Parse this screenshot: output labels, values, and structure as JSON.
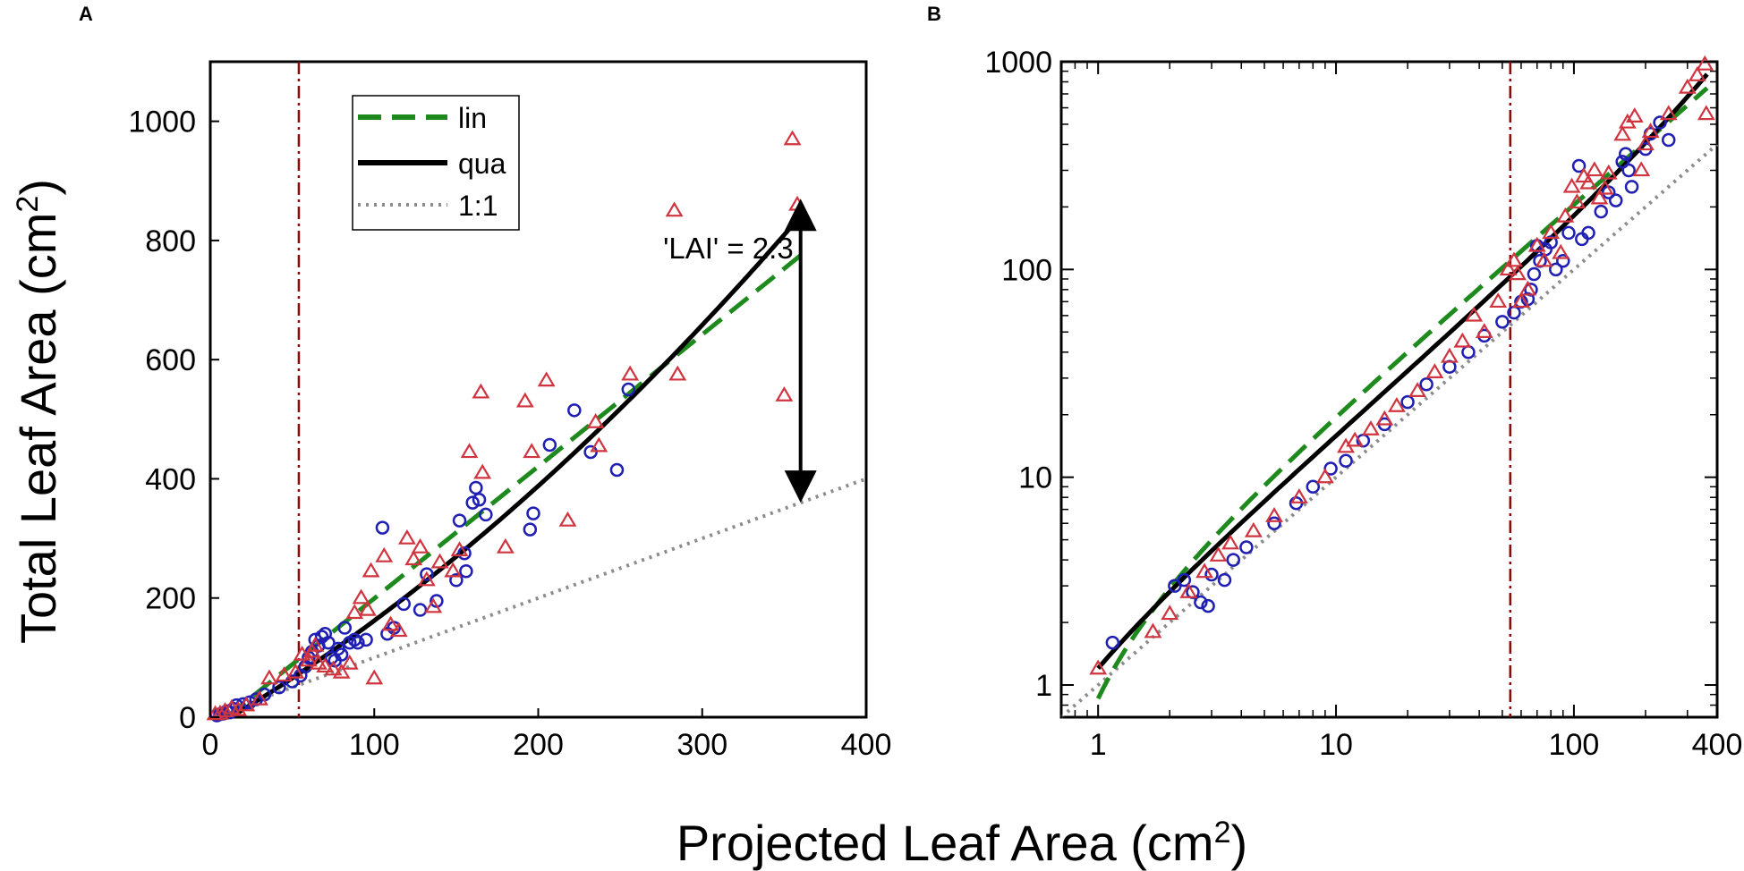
{
  "figure": {
    "shared_xlabel": "Projected Leaf Area (cm2)",
    "shared_xlabel_main": "Projected Leaf Area (cm",
    "shared_xlabel_sup": "2",
    "shared_xlabel_end": ")",
    "shared_ylabel_main": "Total Leaf Area (cm",
    "shared_ylabel_sup": "2",
    "shared_ylabel_end": ")"
  },
  "colors": {
    "blue": "#1f1fb4",
    "red": "#d0343f",
    "green": "#1e8a1e",
    "black": "#000000",
    "gray": "#8c8c8c",
    "darkred": "#8b0a0a"
  },
  "chart_data": [
    {
      "panel": "A",
      "type": "scatter",
      "xscale": "linear",
      "yscale": "linear",
      "xlim": [
        0,
        400
      ],
      "ylim": [
        0,
        1100
      ],
      "xticks": [
        0,
        100,
        200,
        300,
        400
      ],
      "yticks": [
        0,
        200,
        400,
        600,
        800,
        1000
      ],
      "vline_x": 54,
      "legend": {
        "position": "top-left",
        "entries": [
          {
            "key": "lin",
            "label": "lin",
            "style": "green-dashed"
          },
          {
            "key": "qua",
            "label": "qua",
            "style": "black-solid"
          },
          {
            "key": "one",
            "label": "1:1",
            "style": "gray-dotted"
          }
        ]
      },
      "annotation": {
        "text": "'LAI' = 2.3",
        "arrow_x": 360,
        "arrow_y_top": 870,
        "arrow_y_bottom": 360
      },
      "series": [
        {
          "name": "circles",
          "marker": "circle",
          "color": "blue",
          "points": [
            [
              4,
              3
            ],
            [
              6,
              5
            ],
            [
              8,
              6
            ],
            [
              10,
              10
            ],
            [
              12,
              8
            ],
            [
              14,
              14
            ],
            [
              16,
              20
            ],
            [
              20,
              22
            ],
            [
              24,
              25
            ],
            [
              28,
              30
            ],
            [
              33,
              38
            ],
            [
              42,
              50
            ],
            [
              50,
              60
            ],
            [
              55,
              70
            ],
            [
              58,
              85
            ],
            [
              60,
              100
            ],
            [
              62,
              110
            ],
            [
              64,
              130
            ],
            [
              66,
              120
            ],
            [
              68,
              135
            ],
            [
              70,
              140
            ],
            [
              72,
              125
            ],
            [
              74,
              100
            ],
            [
              76,
              95
            ],
            [
              78,
              115
            ],
            [
              80,
              105
            ],
            [
              82,
              150
            ],
            [
              85,
              125
            ],
            [
              88,
              130
            ],
            [
              90,
              125
            ],
            [
              95,
              130
            ],
            [
              105,
              318
            ],
            [
              108,
              140
            ],
            [
              112,
              150
            ],
            [
              118,
              190
            ],
            [
              128,
              180
            ],
            [
              132,
              240
            ],
            [
              138,
              195
            ],
            [
              150,
              230
            ],
            [
              152,
              330
            ],
            [
              155,
              275
            ],
            [
              156,
              245
            ],
            [
              160,
              360
            ],
            [
              162,
              385
            ],
            [
              164,
              365
            ],
            [
              168,
              340
            ],
            [
              195,
              315
            ],
            [
              197,
              342
            ],
            [
              207,
              457
            ],
            [
              222,
              515
            ],
            [
              232,
              445
            ],
            [
              248,
              415
            ],
            [
              255,
              550
            ]
          ]
        },
        {
          "name": "triangles",
          "marker": "triangle",
          "color": "red",
          "points": [
            [
              3,
              5
            ],
            [
              6,
              6
            ],
            [
              9,
              10
            ],
            [
              13,
              15
            ],
            [
              17,
              12
            ],
            [
              22,
              20
            ],
            [
              30,
              30
            ],
            [
              36,
              65
            ],
            [
              45,
              70
            ],
            [
              52,
              75
            ],
            [
              56,
              105
            ],
            [
              60,
              95
            ],
            [
              62,
              110
            ],
            [
              64,
              120
            ],
            [
              66,
              90
            ],
            [
              70,
              85
            ],
            [
              75,
              80
            ],
            [
              80,
              75
            ],
            [
              85,
              90
            ],
            [
              88,
              175
            ],
            [
              92,
              200
            ],
            [
              96,
              180
            ],
            [
              98,
              245
            ],
            [
              100,
              65
            ],
            [
              106,
              270
            ],
            [
              110,
              155
            ],
            [
              115,
              145
            ],
            [
              120,
              300
            ],
            [
              124,
              265
            ],
            [
              128,
              285
            ],
            [
              132,
              230
            ],
            [
              136,
              185
            ],
            [
              140,
              260
            ],
            [
              148,
              245
            ],
            [
              152,
              280
            ],
            [
              158,
              445
            ],
            [
              165,
              545
            ],
            [
              166,
              410
            ],
            [
              180,
              285
            ],
            [
              192,
              530
            ],
            [
              196,
              445
            ],
            [
              205,
              565
            ],
            [
              218,
              330
            ],
            [
              235,
              495
            ],
            [
              237,
              455
            ],
            [
              256,
              575
            ],
            [
              283,
              850
            ],
            [
              285,
              575
            ],
            [
              350,
              540
            ],
            [
              355,
              970
            ],
            [
              358,
              860
            ]
          ]
        }
      ],
      "fits": [
        {
          "key": "one",
          "label": "1:1",
          "from": [
            0,
            0
          ],
          "to": [
            400,
            400
          ]
        },
        {
          "key": "lin",
          "label": "lin",
          "from": [
            10,
            0
          ],
          "to": [
            360,
            775
          ]
        },
        {
          "key": "qua",
          "label": "qua",
          "x_range": [
            12,
            360
          ],
          "curve": "0.0022*x^2 + 1.6*x - 20"
        }
      ]
    },
    {
      "panel": "B",
      "type": "scatter",
      "xscale": "log",
      "yscale": "log",
      "xlim": [
        0.7,
        400
      ],
      "ylim": [
        0.7,
        1000
      ],
      "xticks": [
        1,
        10,
        100,
        400
      ],
      "xtick_labels": [
        "1",
        "10",
        "100",
        "400"
      ],
      "yticks": [
        1,
        10,
        100,
        1000
      ],
      "ytick_labels": [
        "1",
        "10",
        "100",
        "1000"
      ],
      "vline_x": 54,
      "series": [
        {
          "name": "circles",
          "marker": "circle",
          "color": "blue",
          "points": [
            [
              1.15,
              1.6
            ],
            [
              2.1,
              3.0
            ],
            [
              2.3,
              3.2
            ],
            [
              2.5,
              2.8
            ],
            [
              2.7,
              2.5
            ],
            [
              2.9,
              2.4
            ],
            [
              3.0,
              3.4
            ],
            [
              3.4,
              3.2
            ],
            [
              3.7,
              4.0
            ],
            [
              4.2,
              4.6
            ],
            [
              5.5,
              6.0
            ],
            [
              6.8,
              7.5
            ],
            [
              8,
              9
            ],
            [
              9.5,
              11
            ],
            [
              11,
              12
            ],
            [
              13,
              15
            ],
            [
              16,
              18
            ],
            [
              20,
              23
            ],
            [
              24,
              28
            ],
            [
              30,
              34
            ],
            [
              36,
              40
            ],
            [
              42,
              48
            ],
            [
              50,
              56
            ],
            [
              56,
              62
            ],
            [
              60,
              70
            ],
            [
              64,
              72
            ],
            [
              66,
              80
            ],
            [
              68,
              95
            ],
            [
              70,
              130
            ],
            [
              72,
              110
            ],
            [
              76,
              125
            ],
            [
              80,
              135
            ],
            [
              84,
              100
            ],
            [
              90,
              110
            ],
            [
              95,
              150
            ],
            [
              105,
              315
            ],
            [
              108,
              140
            ],
            [
              115,
              150
            ],
            [
              130,
              190
            ],
            [
              140,
              235
            ],
            [
              150,
              215
            ],
            [
              160,
              330
            ],
            [
              165,
              360
            ],
            [
              170,
              300
            ],
            [
              175,
              250
            ],
            [
              200,
              380
            ],
            [
              210,
              450
            ],
            [
              230,
              510
            ],
            [
              250,
              420
            ]
          ]
        },
        {
          "name": "triangles",
          "marker": "triangle",
          "color": "red",
          "points": [
            [
              1.0,
              1.2
            ],
            [
              1.7,
              1.8
            ],
            [
              2.0,
              2.2
            ],
            [
              2.4,
              2.8
            ],
            [
              2.8,
              3.5
            ],
            [
              3.2,
              4.2
            ],
            [
              3.6,
              4.8
            ],
            [
              4.5,
              5.5
            ],
            [
              5.5,
              6.5
            ],
            [
              7,
              8
            ],
            [
              9,
              10
            ],
            [
              11,
              14
            ],
            [
              12,
              15
            ],
            [
              14,
              17
            ],
            [
              16,
              19
            ],
            [
              18,
              22
            ],
            [
              22,
              26
            ],
            [
              26,
              32
            ],
            [
              30,
              38
            ],
            [
              34,
              45
            ],
            [
              38,
              60
            ],
            [
              42,
              50
            ],
            [
              48,
              70
            ],
            [
              53,
              100
            ],
            [
              56,
              110
            ],
            [
              58,
              95
            ],
            [
              60,
              70
            ],
            [
              64,
              80
            ],
            [
              70,
              130
            ],
            [
              75,
              110
            ],
            [
              80,
              150
            ],
            [
              88,
              120
            ],
            [
              92,
              180
            ],
            [
              98,
              250
            ],
            [
              103,
              210
            ],
            [
              110,
              280
            ],
            [
              115,
              260
            ],
            [
              122,
              300
            ],
            [
              128,
              220
            ],
            [
              135,
              245
            ],
            [
              140,
              290
            ],
            [
              160,
              445
            ],
            [
              168,
              510
            ],
            [
              180,
              545
            ],
            [
              192,
              300
            ],
            [
              200,
              400
            ],
            [
              210,
              460
            ],
            [
              250,
              560
            ],
            [
              300,
              750
            ],
            [
              330,
              860
            ],
            [
              355,
              970
            ],
            [
              360,
              560
            ]
          ]
        }
      ],
      "fits": [
        {
          "key": "one",
          "label": "1:1",
          "from": [
            0.7,
            0.7
          ],
          "to": [
            400,
            400
          ]
        },
        {
          "key": "lin",
          "label": "lin",
          "from": [
            1.0,
            0.85
          ],
          "to": [
            370,
            760
          ]
        },
        {
          "key": "qua",
          "label": "qua",
          "x_range": [
            1.0,
            370
          ],
          "curve": "power-law from 1.2 at x=1 to 850 at x=370"
        }
      ]
    }
  ]
}
